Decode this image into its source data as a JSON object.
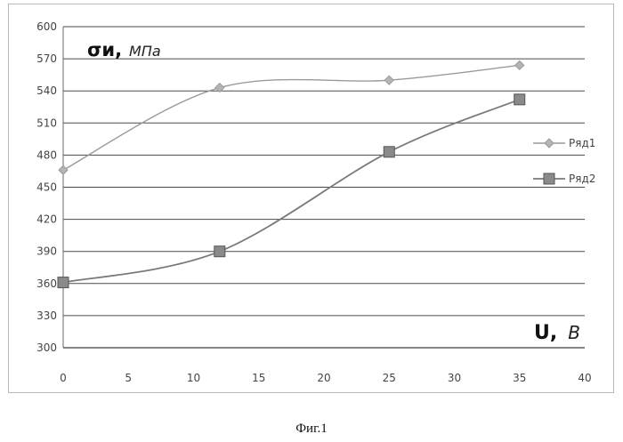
{
  "chart_data": {
    "type": "line",
    "x_axis": {
      "ticks": [
        0,
        5,
        10,
        15,
        20,
        25,
        30,
        35,
        40
      ],
      "range": [
        0,
        40
      ]
    },
    "y_axis": {
      "ticks": [
        300,
        330,
        360,
        390,
        420,
        450,
        480,
        510,
        540,
        570,
        600
      ],
      "range": [
        300,
        600
      ]
    },
    "grid": "horizontal",
    "smooth": true,
    "ylabel": {
      "symbol": "σи,",
      "unit": "МПа"
    },
    "xlabel": {
      "symbol": "U,",
      "unit": "B"
    },
    "legend_position": "right",
    "series": [
      {
        "name": "Ряд1",
        "marker": "diamond",
        "color": "#9a9a9a",
        "x": [
          0,
          12,
          25,
          35
        ],
        "y": [
          466,
          543,
          550,
          564
        ]
      },
      {
        "name": "Ряд2",
        "marker": "square",
        "color": "#7a7a7a",
        "x": [
          0,
          12,
          25,
          35
        ],
        "y": [
          361,
          390,
          483,
          532
        ]
      }
    ]
  },
  "caption": "Фиг.1"
}
